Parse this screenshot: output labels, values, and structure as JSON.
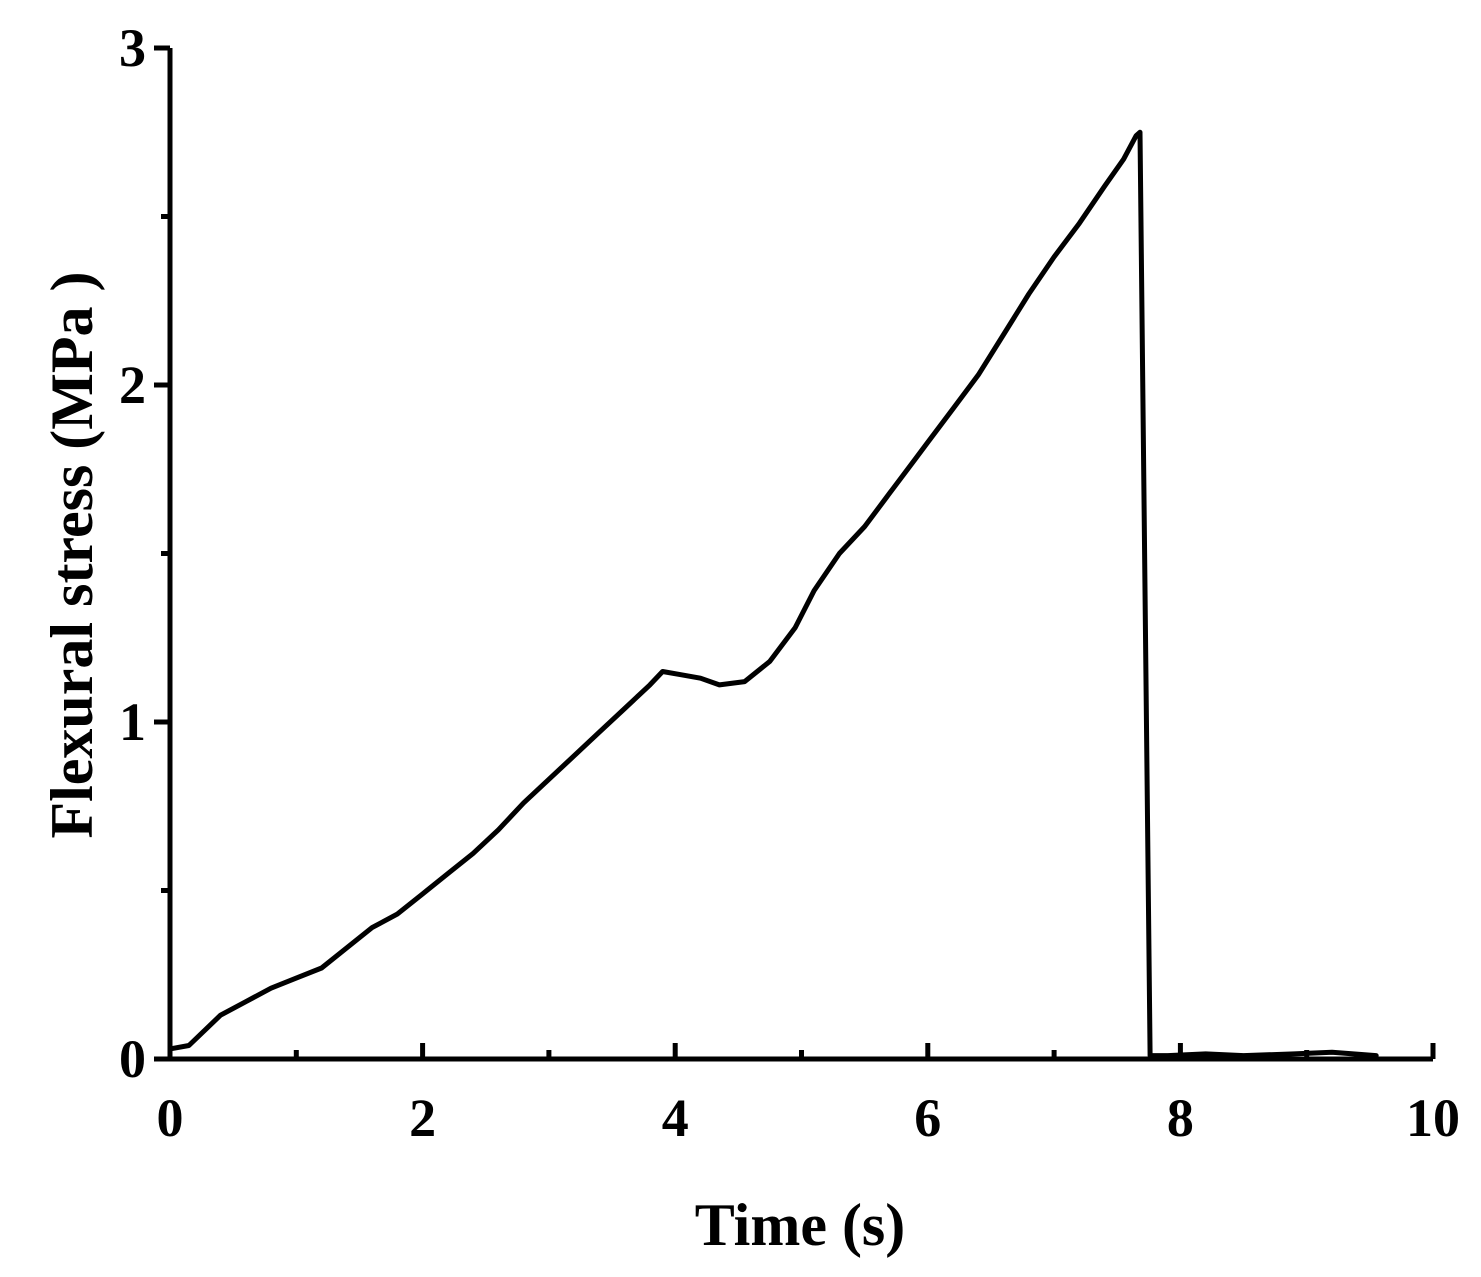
{
  "chart_data": {
    "type": "line",
    "title": "",
    "xlabel": "Time (s)",
    "ylabel": "Flexural stress (MPa )",
    "xlim": [
      0,
      10
    ],
    "ylim": [
      0,
      3
    ],
    "x_ticks": [
      0,
      2,
      4,
      6,
      8,
      10
    ],
    "x_tick_labels": [
      "0",
      "2",
      "4",
      "6",
      "8",
      "10"
    ],
    "x_minor_ticks": [
      1,
      3,
      5,
      7,
      9
    ],
    "y_ticks": [
      0,
      1,
      2,
      3
    ],
    "y_tick_labels": [
      "0",
      "1",
      "2",
      "3"
    ],
    "y_minor_ticks": [
      0.5,
      1.5,
      2.5
    ],
    "grid": false,
    "legend": "none",
    "line_color": "#000000",
    "series": [
      {
        "x": [
          0,
          0.15,
          0.4,
          0.6,
          0.8,
          1.0,
          1.2,
          1.4,
          1.6,
          1.8,
          2.0,
          2.2,
          2.4,
          2.6,
          2.8,
          3.0,
          3.2,
          3.4,
          3.6,
          3.8,
          3.9,
          4.05,
          4.2,
          4.35,
          4.55,
          4.75,
          4.95,
          5.1,
          5.3,
          5.5,
          5.7,
          5.9,
          6.0,
          6.2,
          6.4,
          6.6,
          6.8,
          7.0,
          7.2,
          7.4,
          7.55,
          7.65,
          7.68,
          7.76,
          7.9,
          8.2,
          8.5,
          8.9,
          9.2,
          9.55
        ],
        "y": [
          0.03,
          0.04,
          0.13,
          0.17,
          0.21,
          0.24,
          0.27,
          0.33,
          0.39,
          0.43,
          0.49,
          0.55,
          0.61,
          0.68,
          0.76,
          0.83,
          0.9,
          0.97,
          1.04,
          1.11,
          1.15,
          1.14,
          1.13,
          1.11,
          1.12,
          1.18,
          1.28,
          1.39,
          1.5,
          1.58,
          1.68,
          1.78,
          1.83,
          1.93,
          2.03,
          2.15,
          2.27,
          2.38,
          2.48,
          2.59,
          2.67,
          2.74,
          2.75,
          0.01,
          0.01,
          0.015,
          0.01,
          0.015,
          0.02,
          0.01
        ]
      }
    ]
  }
}
